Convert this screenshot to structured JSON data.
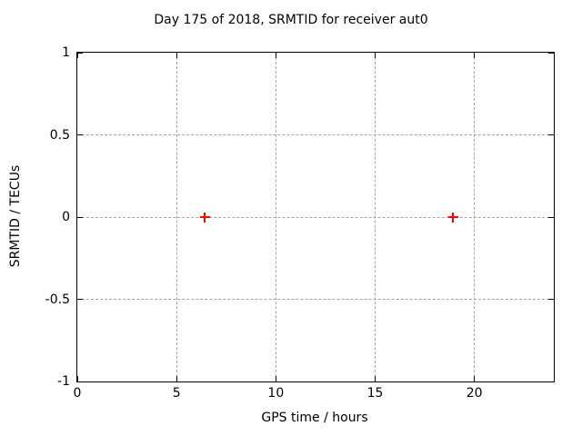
{
  "chart_data": {
    "type": "scatter",
    "title": "Day 175 of 2018, SRMTID for receiver aut0",
    "xlabel": "GPS time / hours",
    "ylabel": "SRMTID / TECUs",
    "xlim": [
      0,
      24
    ],
    "ylim": [
      -1,
      1
    ],
    "xticks": [
      0,
      5,
      10,
      15,
      20
    ],
    "yticks": [
      -1,
      -0.5,
      0,
      0.5,
      1
    ],
    "grid": true,
    "legend": "none",
    "series": [
      {
        "name": "SRMTID",
        "marker": "plus",
        "color": "#ff0000",
        "points": [
          [
            6.4,
            0.0
          ],
          [
            18.9,
            0.0
          ]
        ]
      }
    ]
  },
  "colors": {
    "marker": "#ff0000",
    "axis": "#000000",
    "grid": "#a6a6a6",
    "background": "#ffffff"
  }
}
